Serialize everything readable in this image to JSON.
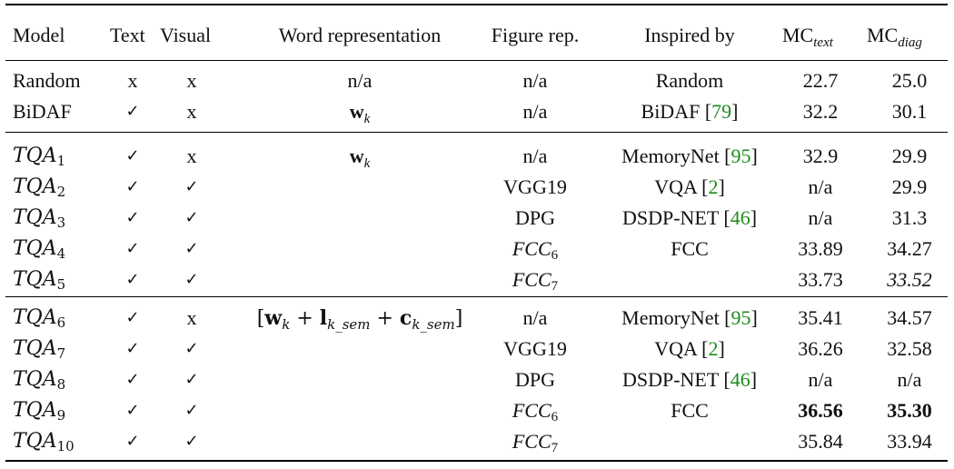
{
  "table": {
    "headers": {
      "model": "Model",
      "text": "Text",
      "visual": "Visual",
      "word_rep": "Word representation",
      "figure_rep": "Figure rep.",
      "inspired_by": "Inspired by",
      "mc_text": "MC",
      "mc_text_sub": "text",
      "mc_diag": "MC",
      "mc_diag_sub": "diag"
    },
    "rows": [
      {
        "model": "Random",
        "model_sub": "",
        "text": "x",
        "visual": "x",
        "word": "n/a",
        "figure": "n/a",
        "figure_sub": "",
        "inspired": "Random",
        "cite": "",
        "mc_text": "22.7",
        "mc_diag": "25.0"
      },
      {
        "model": "BiDAF",
        "model_sub": "",
        "text": "✓",
        "visual": "x",
        "word": "w",
        "word_sub": "k",
        "figure": "n/a",
        "figure_sub": "",
        "inspired": "BiDAF [",
        "cite": "79",
        "mc_text": "32.2",
        "mc_diag": "30.1"
      },
      {
        "model": "TQA",
        "model_sub": "1",
        "text": "✓",
        "visual": "x",
        "word": "w",
        "word_sub": "k",
        "figure": "n/a",
        "figure_sub": "",
        "inspired": "MemoryNet [",
        "cite": "95",
        "mc_text": "32.9",
        "mc_diag": "29.9"
      },
      {
        "model": "TQA",
        "model_sub": "2",
        "text": "✓",
        "visual": "✓",
        "word": "",
        "figure": "VGG19",
        "figure_sub": "",
        "inspired": "VQA [",
        "cite": "2",
        "mc_text": "n/a",
        "mc_diag": "29.9"
      },
      {
        "model": "TQA",
        "model_sub": "3",
        "text": "✓",
        "visual": "✓",
        "word": "",
        "figure": "DPG",
        "figure_sub": "",
        "inspired": "DSDP-NET [",
        "cite": "46",
        "mc_text": "n/a",
        "mc_diag": "31.3"
      },
      {
        "model": "TQA",
        "model_sub": "4",
        "text": "✓",
        "visual": "✓",
        "word": "",
        "figure": "FCC",
        "figure_sub": "6",
        "inspired": "FCC",
        "cite": "",
        "mc_text": "33.89",
        "mc_diag": "34.27"
      },
      {
        "model": "TQA",
        "model_sub": "5",
        "text": "✓",
        "visual": "✓",
        "word": "",
        "figure": "FCC",
        "figure_sub": "7",
        "inspired": "",
        "cite": "",
        "mc_text": "33.73",
        "mc_diag": "33.52"
      },
      {
        "model": "TQA",
        "model_sub": "6",
        "text": "✓",
        "visual": "x",
        "word": "[w",
        "word_sub": "k",
        "figure": "n/a",
        "figure_sub": "",
        "inspired": "MemoryNet [",
        "cite": "95",
        "mc_text": "35.41",
        "mc_diag": "34.57"
      },
      {
        "model": "TQA",
        "model_sub": "7",
        "text": "✓",
        "visual": "✓",
        "word": "",
        "figure": "VGG19",
        "figure_sub": "",
        "inspired": "VQA [",
        "cite": "2",
        "mc_text": "36.26",
        "mc_diag": "32.58"
      },
      {
        "model": "TQA",
        "model_sub": "8",
        "text": "✓",
        "visual": "✓",
        "word": "",
        "figure": "DPG",
        "figure_sub": "",
        "inspired": "DSDP-NET [",
        "cite": "46",
        "mc_text": "n/a",
        "mc_diag": "n/a"
      },
      {
        "model": "TQA",
        "model_sub": "9",
        "text": "✓",
        "visual": "✓",
        "word": "",
        "figure": "FCC",
        "figure_sub": "6",
        "inspired": "FCC",
        "cite": "",
        "mc_text": "36.56",
        "mc_diag": "35.30"
      },
      {
        "model": "TQA",
        "model_sub": "10",
        "text": "✓",
        "visual": "✓",
        "word": "",
        "figure": "FCC",
        "figure_sub": "7",
        "inspired": "",
        "cite": "",
        "mc_text": "35.84",
        "mc_diag": "33.94"
      }
    ],
    "tqa6_word": {
      "open": "[",
      "w": "w",
      "w_sub": "k",
      "plus1": " + ",
      "l": "l",
      "l_sub": "k_sem",
      "plus2": " + ",
      "c": "c",
      "c_sub": "k_sem",
      "close": "]"
    }
  }
}
